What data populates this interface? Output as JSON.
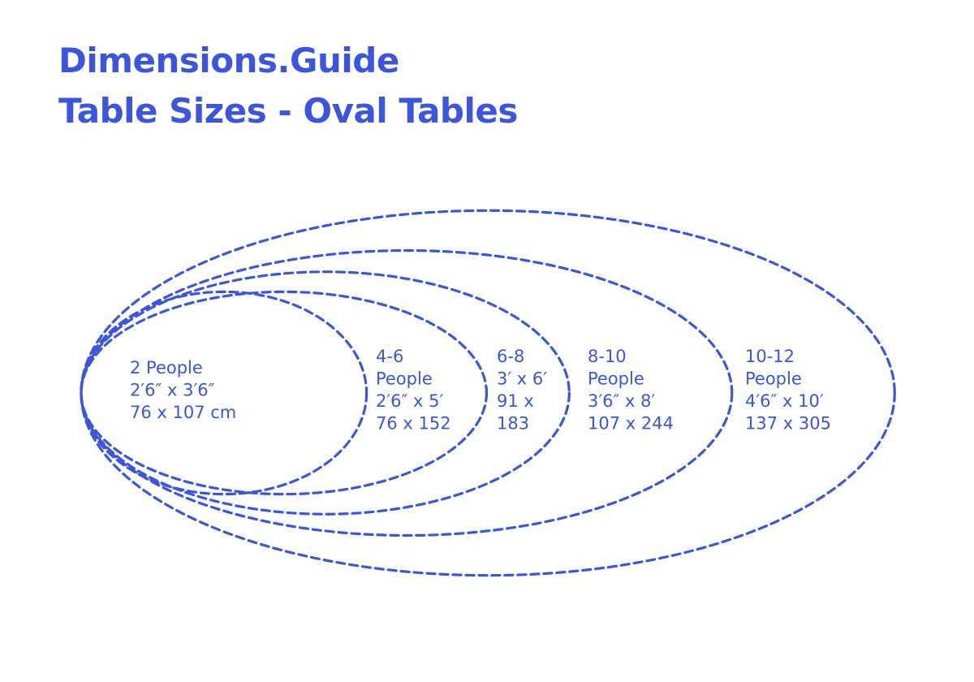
{
  "header": {
    "brand": "Dimensions.Guide",
    "title": "Table Sizes - Oval Tables"
  },
  "colors": {
    "accent": "#3b55e0",
    "background": "#ffffff"
  },
  "tables": [
    {
      "id": "2-people",
      "lines": [
        "2 People",
        "2′6″ x 3′6″",
        "76 x 107 cm"
      ],
      "width_cm": 76,
      "length_cm": 107
    },
    {
      "id": "4-6-people",
      "lines": [
        "4-6",
        "People",
        "2′6″ x 5′",
        "76 x 152"
      ],
      "width_cm": 76,
      "length_cm": 152
    },
    {
      "id": "6-8-people",
      "lines": [
        "6-8",
        "3′ x 6′",
        "91 x",
        "183"
      ],
      "width_cm": 91,
      "length_cm": 183
    },
    {
      "id": "8-10-people",
      "lines": [
        "8-10",
        "People",
        "3′6″ x 8′",
        "107 x 244"
      ],
      "width_cm": 107,
      "length_cm": 244
    },
    {
      "id": "10-12-people",
      "lines": [
        "10-12",
        "People",
        "4′6″ x 10′",
        "137 x 305"
      ],
      "width_cm": 137,
      "length_cm": 305
    }
  ]
}
